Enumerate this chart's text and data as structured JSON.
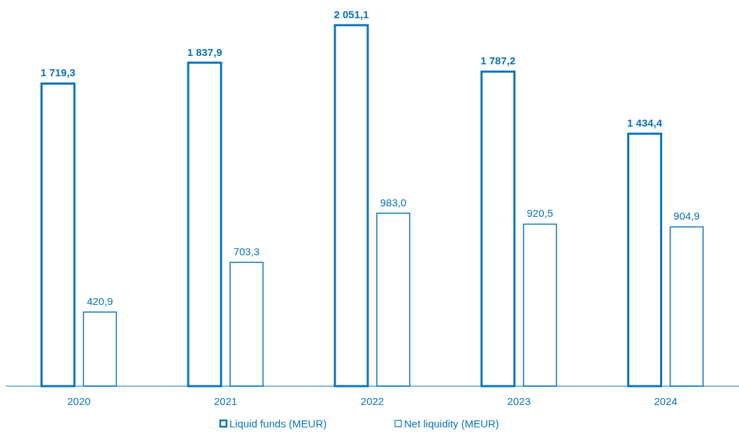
{
  "chart_data": {
    "type": "bar",
    "categories": [
      "2020",
      "2021",
      "2022",
      "2023",
      "2024"
    ],
    "series": [
      {
        "name": "Liquid funds (MEUR)",
        "color": "#0a73b8",
        "values": [
          1719.3,
          1837.9,
          2051.1,
          1787.2,
          1434.4
        ],
        "value_labels": [
          "1 719,3",
          "1 837,9",
          "2 051,1",
          "1 787,2",
          "1 434,4"
        ]
      },
      {
        "name": "Net liquidity (MEUR)",
        "color": "#0a73b8",
        "values": [
          420.9,
          703.3,
          983.0,
          920.5,
          904.9
        ],
        "value_labels": [
          "420,9",
          "703,3",
          "983,0",
          "920,5",
          "904,9"
        ]
      }
    ],
    "legend": "bottom"
  }
}
